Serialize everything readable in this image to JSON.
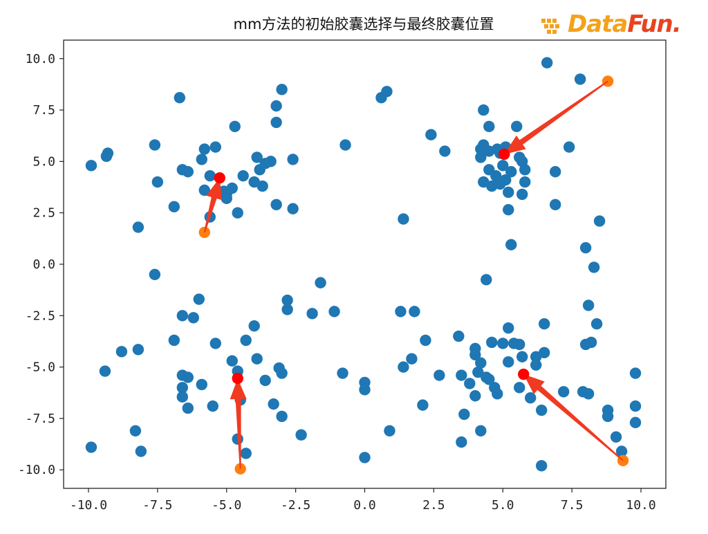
{
  "chart_data": {
    "type": "scatter",
    "title": "mm方法的初始胶囊选择与最终胶囊位置",
    "xlabel": "",
    "ylabel": "",
    "xlim": [
      -10.9,
      10.9
    ],
    "ylim": [
      -10.9,
      10.9
    ],
    "xticks": [
      "-10.0",
      "-7.5",
      "-5.0",
      "-2.5",
      "0.0",
      "2.5",
      "5.0",
      "7.5",
      "10.0"
    ],
    "yticks": [
      "10.0",
      "7.5",
      "5.0",
      "2.5",
      "0.0",
      "-2.5",
      "-5.0",
      "-7.5",
      "-10.0"
    ],
    "grid": false,
    "series": [
      {
        "color": "#1f77b4",
        "points": [
          [
            -6.7,
            8.1
          ],
          [
            -3.0,
            8.5
          ],
          [
            -3.2,
            7.7
          ],
          [
            -3.2,
            6.9
          ],
          [
            -4.7,
            6.7
          ],
          [
            -9.3,
            5.4
          ],
          [
            -9.35,
            5.25
          ],
          [
            -9.9,
            4.8
          ],
          [
            -7.6,
            5.8
          ],
          [
            -5.8,
            5.6
          ],
          [
            -5.9,
            5.1
          ],
          [
            -5.4,
            5.7
          ],
          [
            -3.9,
            5.2
          ],
          [
            -3.4,
            5.0
          ],
          [
            -3.6,
            4.9
          ],
          [
            -2.6,
            5.1
          ],
          [
            -6.6,
            4.6
          ],
          [
            -6.4,
            4.5
          ],
          [
            -5.6,
            4.3
          ],
          [
            -4.4,
            4.3
          ],
          [
            -3.8,
            4.6
          ],
          [
            -4.0,
            4.0
          ],
          [
            -7.5,
            4.0
          ],
          [
            -3.7,
            3.8
          ],
          [
            -5.8,
            3.6
          ],
          [
            -5.1,
            3.55
          ],
          [
            -5.0,
            3.4
          ],
          [
            -4.8,
            3.7
          ],
          [
            -5.0,
            3.2
          ],
          [
            -6.9,
            2.8
          ],
          [
            -3.2,
            2.9
          ],
          [
            -2.6,
            2.7
          ],
          [
            -4.6,
            2.5
          ],
          [
            -5.6,
            2.3
          ],
          [
            -8.2,
            1.8
          ],
          [
            0.8,
            8.4
          ],
          [
            0.6,
            8.1
          ],
          [
            -0.7,
            5.8
          ],
          [
            1.4,
            2.2
          ],
          [
            6.6,
            9.8
          ],
          [
            7.8,
            9.0
          ],
          [
            4.3,
            7.5
          ],
          [
            4.5,
            6.7
          ],
          [
            5.5,
            6.7
          ],
          [
            2.4,
            6.3
          ],
          [
            2.9,
            5.5
          ],
          [
            7.4,
            5.7
          ],
          [
            4.2,
            5.6
          ],
          [
            4.3,
            5.8
          ],
          [
            4.5,
            5.5
          ],
          [
            4.8,
            5.6
          ],
          [
            5.1,
            5.7
          ],
          [
            4.2,
            5.2
          ],
          [
            4.9,
            5.4
          ],
          [
            5.6,
            5.2
          ],
          [
            5.7,
            5.0
          ],
          [
            4.5,
            4.6
          ],
          [
            4.75,
            4.3
          ],
          [
            5.0,
            4.8
          ],
          [
            5.3,
            4.5
          ],
          [
            5.8,
            4.6
          ],
          [
            6.9,
            4.5
          ],
          [
            4.3,
            4.0
          ],
          [
            4.6,
            3.8
          ],
          [
            4.9,
            3.9
          ],
          [
            5.1,
            4.1
          ],
          [
            5.2,
            3.5
          ],
          [
            5.7,
            3.4
          ],
          [
            5.8,
            4.0
          ],
          [
            6.9,
            2.9
          ],
          [
            5.2,
            2.65
          ],
          [
            8.5,
            2.1
          ],
          [
            5.3,
            0.95
          ],
          [
            8.0,
            0.8
          ],
          [
            8.3,
            -0.15
          ],
          [
            -7.6,
            -0.5
          ],
          [
            -1.6,
            -0.9
          ],
          [
            4.4,
            -0.75
          ],
          [
            -6.0,
            -1.7
          ],
          [
            -2.8,
            -1.75
          ],
          [
            -2.8,
            -2.2
          ],
          [
            -6.6,
            -2.5
          ],
          [
            -6.2,
            -2.6
          ],
          [
            -1.9,
            -2.4
          ],
          [
            -1.1,
            -2.3
          ],
          [
            1.3,
            -2.3
          ],
          [
            1.8,
            -2.3
          ],
          [
            8.1,
            -2.0
          ],
          [
            6.5,
            -2.9
          ],
          [
            8.4,
            -2.9
          ],
          [
            5.2,
            -3.1
          ],
          [
            -4.0,
            -3.0
          ],
          [
            -6.9,
            -3.7
          ],
          [
            -5.4,
            -3.85
          ],
          [
            -4.3,
            -3.7
          ],
          [
            2.2,
            -3.7
          ],
          [
            3.4,
            -3.5
          ],
          [
            -8.8,
            -4.25
          ],
          [
            -8.2,
            -4.15
          ],
          [
            -9.4,
            -5.2
          ],
          [
            4.0,
            -4.1
          ],
          [
            4.0,
            -4.4
          ],
          [
            4.6,
            -3.8
          ],
          [
            5.0,
            -3.85
          ],
          [
            5.4,
            -3.85
          ],
          [
            5.6,
            -3.9
          ],
          [
            8.0,
            -3.9
          ],
          [
            8.2,
            -3.8
          ],
          [
            6.5,
            -4.3
          ],
          [
            6.2,
            -4.5
          ],
          [
            5.7,
            -4.5
          ],
          [
            5.2,
            -4.75
          ],
          [
            6.2,
            -4.9
          ],
          [
            4.2,
            -4.8
          ],
          [
            -4.8,
            -4.7
          ],
          [
            -3.9,
            -4.6
          ],
          [
            1.7,
            -4.6
          ],
          [
            1.4,
            -5.0
          ],
          [
            -3.1,
            -5.05
          ],
          [
            -4.6,
            -5.2
          ],
          [
            -3.0,
            -5.3
          ],
          [
            -0.8,
            -5.3
          ],
          [
            2.7,
            -5.4
          ],
          [
            3.5,
            -5.4
          ],
          [
            4.1,
            -5.25
          ],
          [
            4.4,
            -5.5
          ],
          [
            4.5,
            -5.6
          ],
          [
            9.8,
            -5.3
          ],
          [
            -6.6,
            -5.4
          ],
          [
            -6.4,
            -5.5
          ],
          [
            -5.9,
            -5.85
          ],
          [
            -3.6,
            -5.65
          ],
          [
            0.0,
            -5.75
          ],
          [
            0.0,
            -6.1
          ],
          [
            3.8,
            -5.8
          ],
          [
            4.7,
            -6.0
          ],
          [
            5.6,
            -6.0
          ],
          [
            4.8,
            -6.3
          ],
          [
            6.0,
            -6.5
          ],
          [
            7.2,
            -6.2
          ],
          [
            7.9,
            -6.2
          ],
          [
            8.1,
            -6.3
          ],
          [
            -6.6,
            -6.0
          ],
          [
            -6.6,
            -6.45
          ],
          [
            -6.4,
            -7.0
          ],
          [
            -4.5,
            -6.6
          ],
          [
            -5.5,
            -6.9
          ],
          [
            -3.3,
            -6.8
          ],
          [
            -3.0,
            -7.4
          ],
          [
            2.1,
            -6.85
          ],
          [
            4.0,
            -6.4
          ],
          [
            3.6,
            -7.3
          ],
          [
            6.4,
            -7.1
          ],
          [
            8.8,
            -7.1
          ],
          [
            8.8,
            -7.4
          ],
          [
            9.8,
            -6.9
          ],
          [
            9.8,
            -7.7
          ],
          [
            -8.3,
            -8.1
          ],
          [
            -8.1,
            -9.1
          ],
          [
            -9.9,
            -8.9
          ],
          [
            -4.6,
            -8.5
          ],
          [
            -4.3,
            -9.2
          ],
          [
            -2.3,
            -8.3
          ],
          [
            0.9,
            -8.1
          ],
          [
            0.0,
            -9.4
          ],
          [
            3.5,
            -8.65
          ],
          [
            4.2,
            -8.1
          ],
          [
            9.1,
            -8.4
          ],
          [
            9.3,
            -9.1
          ],
          [
            6.4,
            -9.8
          ]
        ]
      },
      {
        "color": "#ff7f0e",
        "points": [
          [
            -5.8,
            1.55
          ],
          [
            8.8,
            8.9
          ],
          [
            -4.5,
            -9.95
          ],
          [
            9.35,
            -9.55
          ]
        ]
      },
      {
        "color": "#ff0000",
        "points": [
          [
            -5.25,
            4.2
          ],
          [
            5.05,
            5.35
          ],
          [
            -4.6,
            -5.55
          ],
          [
            5.75,
            -5.35
          ]
        ]
      }
    ],
    "arrows": [
      {
        "from": [
          -5.8,
          1.55
        ],
        "to": [
          -5.25,
          4.2
        ]
      },
      {
        "from": [
          8.8,
          8.9
        ],
        "to": [
          5.05,
          5.35
        ]
      },
      {
        "from": [
          -4.5,
          -9.95
        ],
        "to": [
          -4.6,
          -5.55
        ]
      },
      {
        "from": [
          9.35,
          -9.55
        ],
        "to": [
          5.75,
          -5.35
        ]
      }
    ],
    "arrow_color": "#f03a22"
  },
  "watermark": {
    "text_a": "Data",
    "text_b": "Fun."
  }
}
